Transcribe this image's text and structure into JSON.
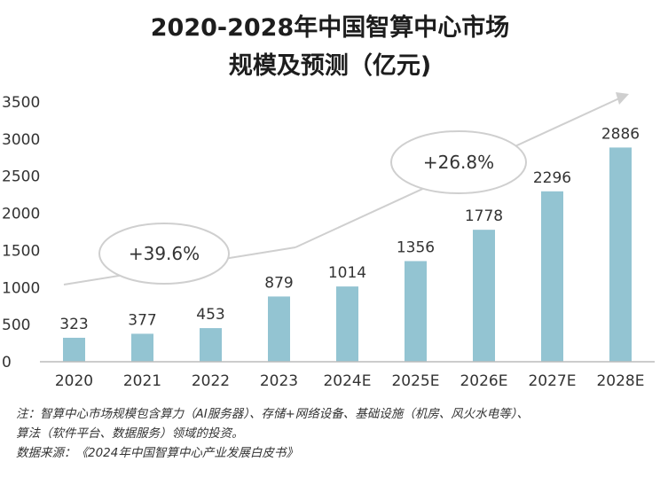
{
  "chart_data": {
    "type": "bar",
    "title_line1": "2020-2028年中国智算中心市场",
    "title_line2": "规模及预测（亿元)",
    "categories": [
      "2020",
      "2021",
      "2022",
      "2023",
      "2024E",
      "2025E",
      "2026E",
      "2027E",
      "2028E"
    ],
    "values": [
      323,
      377,
      453,
      879,
      1014,
      1356,
      1778,
      2296,
      2886
    ],
    "ylim": [
      0,
      3500
    ],
    "yticks": [
      0,
      500,
      1000,
      1500,
      2000,
      2500,
      3000,
      3500
    ],
    "bar_color": "#93c4d2",
    "arrow_color": "#cfcfcf",
    "grid": false,
    "annotations": [
      {
        "text": "+39.6%",
        "from_year": "2020",
        "to_year": "2023"
      },
      {
        "text": "+26.8%",
        "from_year": "2024E",
        "to_year": "2028E"
      }
    ]
  },
  "notes": {
    "line1": "注：智算中心市场规模包含算力（AI服务器）、存储+网络设备、基础设施（机房、风火水电等）、",
    "line2": "算法（软件平台、数据服务）领域的投资。",
    "line3": "数据来源：《2024年中国智算中心产业发展白皮书》"
  }
}
